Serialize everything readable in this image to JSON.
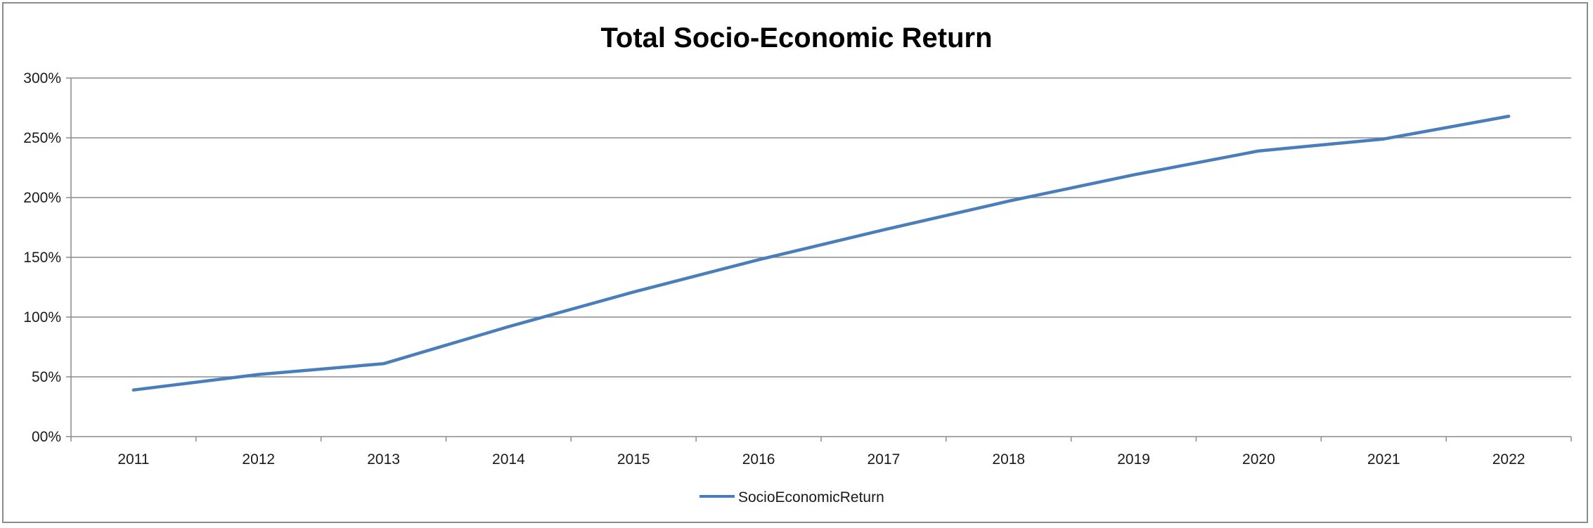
{
  "chart_data": {
    "type": "line",
    "title": "Total Socio-Economic Return",
    "xlabel": "",
    "ylabel": "",
    "categories": [
      "2011",
      "2012",
      "2013",
      "2014",
      "2015",
      "2016",
      "2017",
      "2018",
      "2019",
      "2020",
      "2021",
      "2022"
    ],
    "series": [
      {
        "name": "SocioEconomicReturn",
        "values": [
          0.39,
          0.52,
          0.61,
          0.92,
          1.21,
          1.48,
          1.73,
          1.97,
          2.19,
          2.39,
          2.49,
          2.68
        ],
        "color": "#4a7ebb"
      }
    ],
    "yticks": [
      "00%",
      "50%",
      "100%",
      "150%",
      "200%",
      "250%",
      "300%"
    ],
    "ylim": [
      0,
      3
    ],
    "grid": true,
    "legend_position": "bottom"
  }
}
